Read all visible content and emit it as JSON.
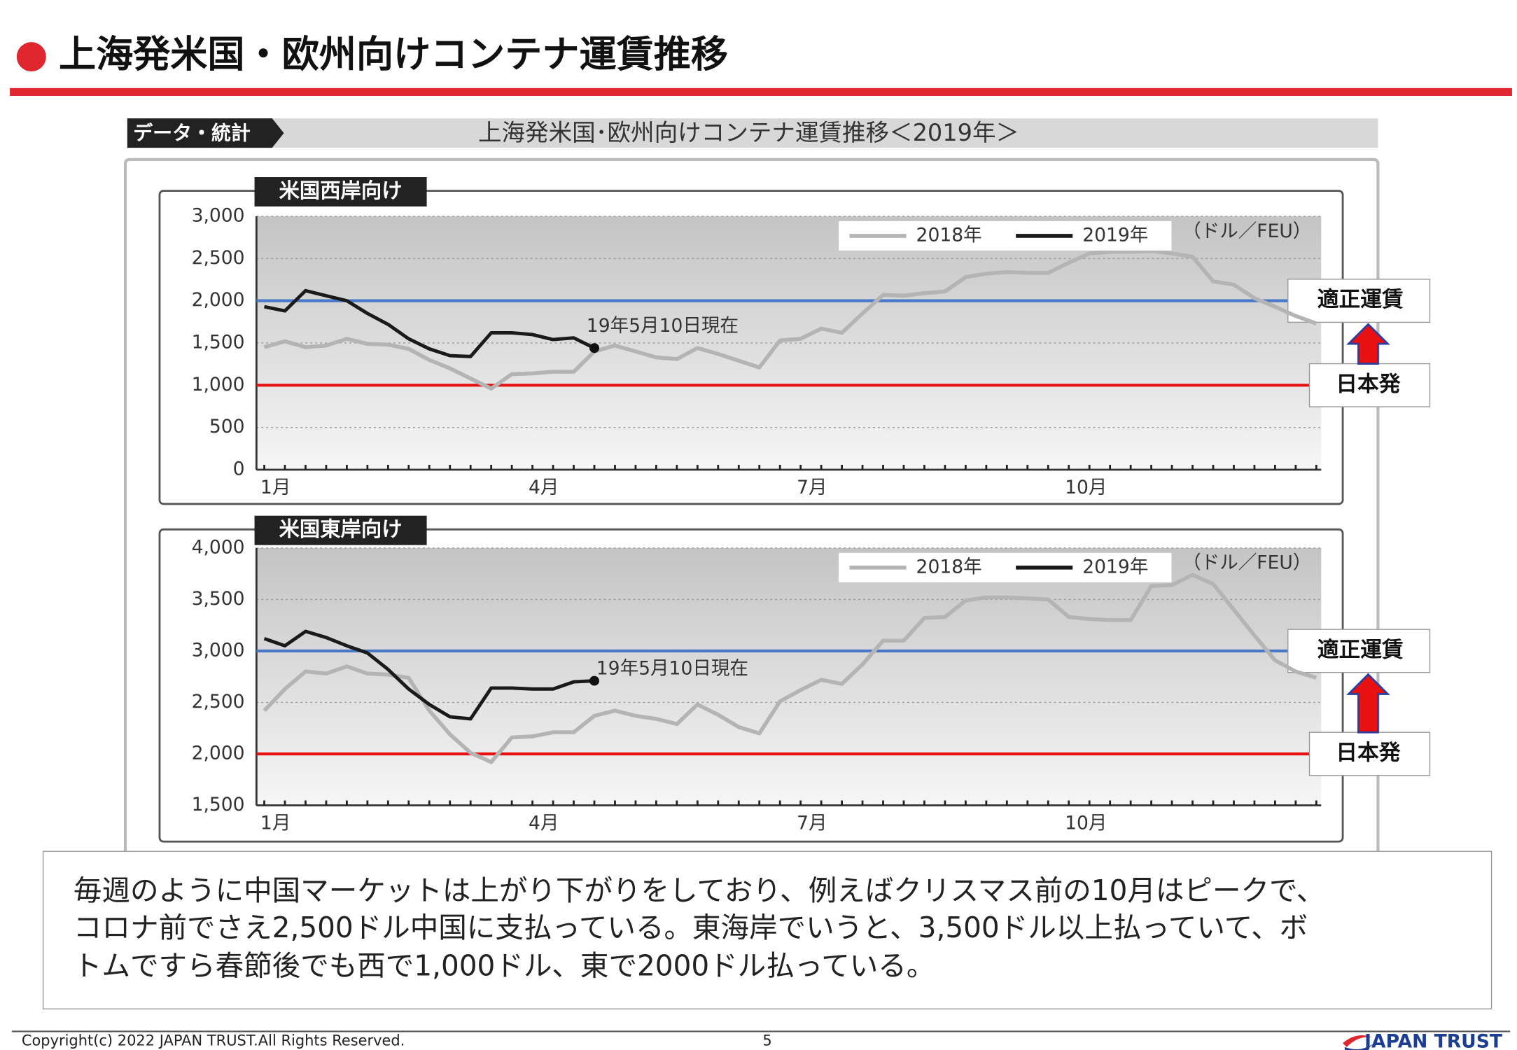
{
  "header": {
    "title": "上海発米国・欧州向けコンテナ運賃推移"
  },
  "banner": {
    "tag": "データ・統計",
    "title": "上海発米国･欧州向けコンテナ運賃推移＜2019年＞"
  },
  "chart_data": [
    {
      "type": "line",
      "title": "米国西岸向け",
      "unit": "（ドル／FEU）",
      "annotation": "19年5月10日現在",
      "categories": [
        "1月",
        null,
        null,
        null,
        null,
        null,
        null,
        null,
        null,
        null,
        null,
        null,
        null,
        "4月",
        null,
        null,
        null,
        null,
        null,
        null,
        null,
        null,
        null,
        null,
        null,
        null,
        "7月",
        null,
        null,
        null,
        null,
        null,
        null,
        null,
        null,
        null,
        null,
        null,
        null,
        "10月",
        null,
        null,
        null,
        null,
        null,
        null,
        null,
        null,
        null,
        null,
        null,
        null
      ],
      "series": [
        {
          "name": "2018年",
          "color": "#b4b4b4",
          "values": [
            1450,
            1520,
            1450,
            1470,
            1550,
            1490,
            1480,
            1430,
            1300,
            1200,
            1080,
            960,
            1130,
            1140,
            1160,
            1160,
            1400,
            1470,
            1400,
            1330,
            1310,
            1440,
            1370,
            1290,
            1210,
            1530,
            1550,
            1670,
            1620,
            1850,
            2070,
            2060,
            2090,
            2110,
            2280,
            2320,
            2340,
            2330,
            2330,
            2450,
            2560,
            2580,
            2580,
            2590,
            2560,
            2520,
            2230,
            2190,
            2030,
            1930,
            1820,
            1730
          ]
        },
        {
          "name": "2019年",
          "color": "#1a1a1a",
          "values": [
            1930,
            1880,
            2120,
            2060,
            2000,
            1850,
            1720,
            1550,
            1430,
            1350,
            1340,
            1620,
            1620,
            1600,
            1540,
            1560,
            1440,
            null,
            null,
            null,
            null,
            null,
            null,
            null,
            null,
            null,
            null,
            null,
            null,
            null,
            null,
            null,
            null,
            null,
            null,
            null,
            null,
            null,
            null,
            null,
            null,
            null,
            null,
            null,
            null,
            null,
            null,
            null,
            null,
            null,
            null,
            null
          ]
        }
      ],
      "reference_lines": [
        {
          "label": "適正運賃",
          "value": 2000,
          "color": "#4a78c8"
        },
        {
          "label": "日本発",
          "value": 1000,
          "color": "#e81010"
        }
      ],
      "ylim": [
        0,
        3000
      ],
      "yticks": [
        0,
        500,
        {
          "value": 1000,
          "label": "1,000"
        },
        {
          "value": 1500,
          "label": "1,500"
        },
        {
          "value": 2000,
          "label": "2,000"
        },
        {
          "value": 2500,
          "label": "2,500"
        },
        {
          "value": 3000,
          "label": "3,000"
        }
      ],
      "grid": true
    },
    {
      "type": "line",
      "title": "米国東岸向け",
      "unit": "（ドル／FEU）",
      "annotation": "19年5月10日現在",
      "categories": [
        "1月",
        null,
        null,
        null,
        null,
        null,
        null,
        null,
        null,
        null,
        null,
        null,
        null,
        "4月",
        null,
        null,
        null,
        null,
        null,
        null,
        null,
        null,
        null,
        null,
        null,
        null,
        "7月",
        null,
        null,
        null,
        null,
        null,
        null,
        null,
        null,
        null,
        null,
        null,
        null,
        "10月",
        null,
        null,
        null,
        null,
        null,
        null,
        null,
        null,
        null,
        null,
        null,
        null
      ],
      "series": [
        {
          "name": "2018年",
          "color": "#b4b4b4",
          "values": [
            2420,
            2630,
            2800,
            2780,
            2850,
            2780,
            2770,
            2740,
            2420,
            2190,
            2010,
            1920,
            2160,
            2170,
            2210,
            2210,
            2370,
            2420,
            2370,
            2340,
            2290,
            2480,
            2380,
            2260,
            2200,
            2510,
            2620,
            2720,
            2680,
            2870,
            3100,
            3100,
            3320,
            3330,
            3490,
            3520,
            3520,
            3510,
            3500,
            3330,
            3310,
            3300,
            3300,
            3630,
            3640,
            3740,
            3650,
            3400,
            3150,
            2910,
            2800,
            2740
          ]
        },
        {
          "name": "2019年",
          "color": "#1a1a1a",
          "values": [
            3120,
            3050,
            3190,
            3130,
            3050,
            2980,
            2820,
            2630,
            2480,
            2360,
            2340,
            2640,
            2640,
            2630,
            2630,
            2700,
            2710,
            null,
            null,
            null,
            null,
            null,
            null,
            null,
            null,
            null,
            null,
            null,
            null,
            null,
            null,
            null,
            null,
            null,
            null,
            null,
            null,
            null,
            null,
            null,
            null,
            null,
            null,
            null,
            null,
            null,
            null,
            null,
            null,
            null,
            null,
            null
          ]
        }
      ],
      "reference_lines": [
        {
          "label": "適正運賃",
          "value": 3000,
          "color": "#4a78c8"
        },
        {
          "label": "日本発",
          "value": 2000,
          "color": "#e81010"
        }
      ],
      "ylim": [
        1500,
        4000
      ],
      "yticks": [
        {
          "value": 1500,
          "label": "1,500"
        },
        {
          "value": 2000,
          "label": "2,000"
        },
        {
          "value": 2500,
          "label": "2,500"
        },
        {
          "value": 3000,
          "label": "3,000"
        },
        {
          "value": 3500,
          "label": "3,500"
        },
        {
          "value": 4000,
          "label": "4,000"
        }
      ],
      "grid": true
    }
  ],
  "body": {
    "lines": [
      "毎週のように中国マーケットは上がり下がりをしており、例えばクリスマス前の10月はピークで、",
      "コロナ前でさえ2,500ドル中国に支払っている。東海岸でいうと、3,500ドル以上払っていて、ボ",
      "トムですら春節後でも西で1,000ドル、東で2000ドル払っている。"
    ]
  },
  "footer": {
    "copyright": "Copyright(c) 2022 JAPAN TRUST.All Rights Reserved.",
    "page": "5",
    "logo": "JAPAN TRUST"
  }
}
